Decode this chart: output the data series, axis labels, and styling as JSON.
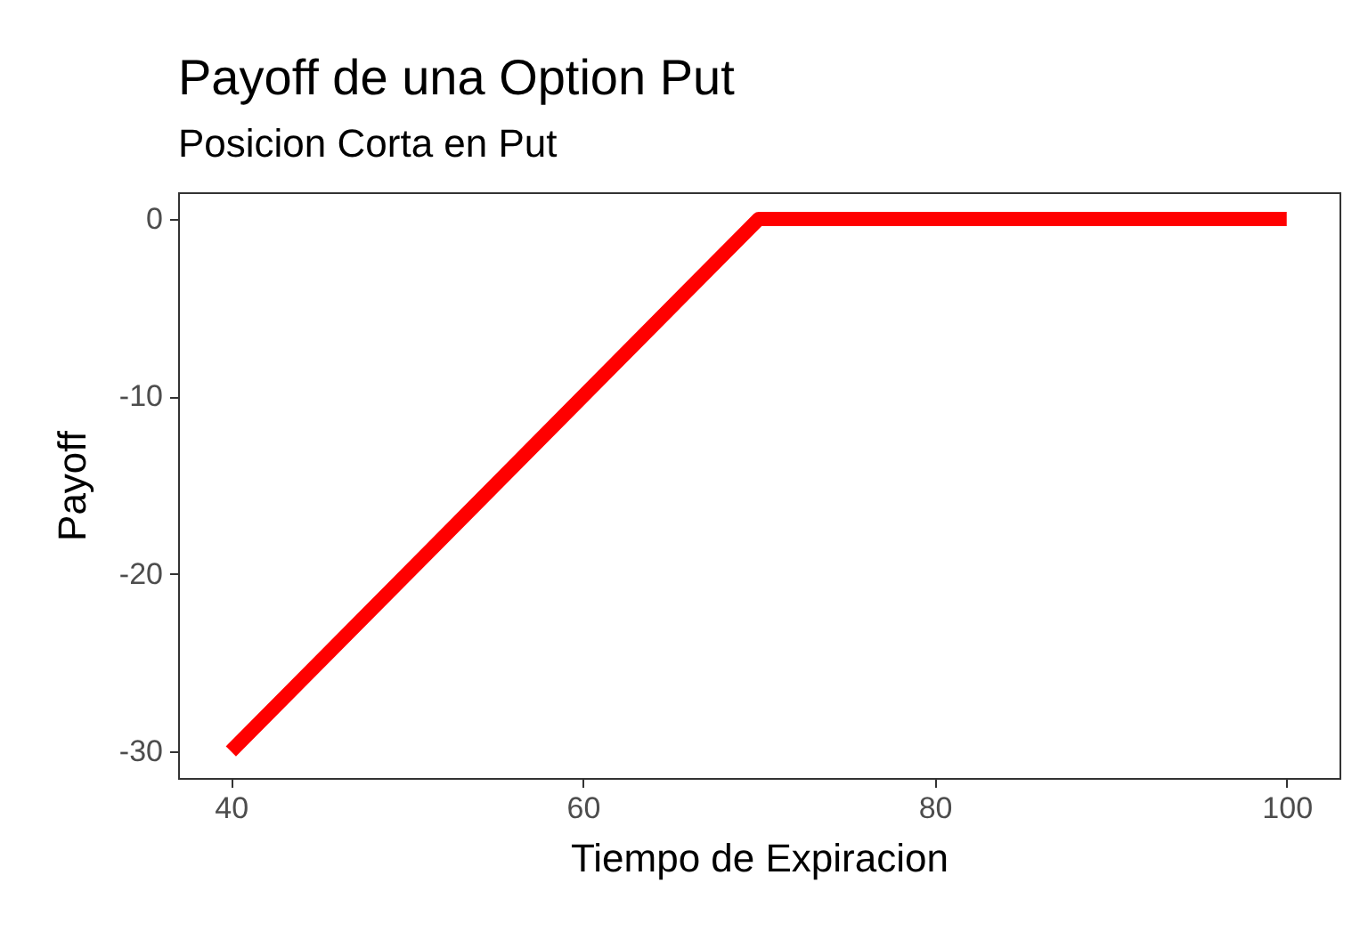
{
  "chart_data": {
    "type": "line",
    "title": "Payoff de una Option Put",
    "subtitle": "Posicion Corta en Put",
    "xlabel": "Tiempo de Expiracion",
    "ylabel": "Payoff",
    "x": [
      40,
      70,
      100
    ],
    "series": [
      {
        "color": "#ff0000",
        "values": [
          -30,
          0,
          0
        ]
      }
    ],
    "xlim": [
      37,
      103
    ],
    "ylim": [
      -31.5,
      1.5
    ],
    "xticks": [
      40,
      60,
      80,
      100
    ],
    "yticks": [
      -30,
      -20,
      -10,
      0
    ]
  }
}
